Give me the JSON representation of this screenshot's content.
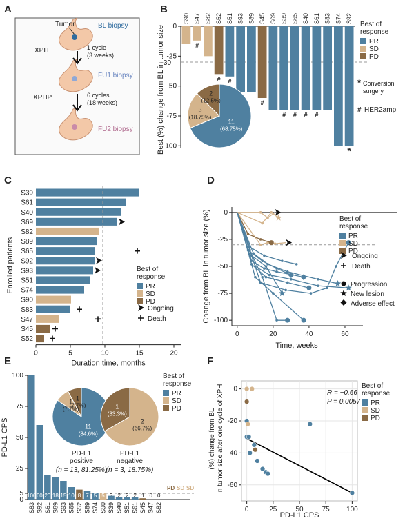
{
  "colors": {
    "PR": "#4f80a0",
    "SD": "#d4b48c",
    "PD": "#8a6a45",
    "stomach": "#f3c8a8",
    "tumor": "#2e6b9e",
    "fu1": "#8fa8d6",
    "fu2": "#c98aa8"
  },
  "panel_letters": [
    "A",
    "B",
    "C",
    "D",
    "E",
    "F"
  ],
  "panel_a": {
    "tumor_label": "Tumor",
    "bl_label": "BL biopsy",
    "fu1_label": "FU1 biopsy",
    "fu2_label": "FU2 biopsy",
    "step1_drug": "XPH",
    "step1_cycles": "1 cycle",
    "step1_weeks": "(3 weeks)",
    "step2_drug": "XPHP",
    "step2_cycles": "6 cycles",
    "step2_weeks": "(18 weeks)"
  },
  "legend": {
    "title1": "Best of",
    "title2": "response",
    "PR": "PR",
    "SD": "SD",
    "PD": "PD",
    "ongoing": "Ongoing",
    "death": "Death",
    "progression": "Progression",
    "new_lesion": "New lesion",
    "adverse": "Adverse effect",
    "conversion1": "Conversion",
    "conversion2": "surgery",
    "her2": "HER2amp"
  },
  "chart_data": [
    {
      "panel": "B",
      "type": "bar",
      "ylabel": "Best (%) change from BL in tumor size",
      "ylim": [
        -105,
        0
      ],
      "yticks": [
        0,
        -25,
        -50,
        -75,
        -100
      ],
      "reference_line": -30,
      "categories": [
        "S90",
        "S47",
        "S82",
        "S52",
        "S51",
        "S93",
        "S89",
        "S45",
        "S69",
        "S39",
        "S65",
        "S40",
        "S61",
        "S83",
        "S74",
        "S92"
      ],
      "values": [
        -15,
        -12,
        -25,
        -40,
        -42,
        -55,
        -55,
        -60,
        -70,
        -70,
        -70,
        -70,
        -70,
        -70,
        -100,
        -100
      ],
      "response": [
        "SD",
        "SD",
        "SD",
        "PD",
        "PR",
        "PR",
        "PR",
        "PD",
        "PR",
        "PR",
        "PR",
        "PR",
        "PR",
        "PR",
        "PR",
        "PR"
      ],
      "her2amp": [
        false,
        true,
        false,
        true,
        true,
        false,
        false,
        true,
        false,
        true,
        true,
        true,
        true,
        false,
        false,
        false
      ],
      "conversion_surgery": [
        false,
        false,
        false,
        false,
        false,
        false,
        false,
        false,
        false,
        false,
        false,
        false,
        false,
        false,
        false,
        true
      ],
      "pie": {
        "values": [
          11,
          3,
          2
        ],
        "labels": [
          "11",
          "3",
          "2"
        ],
        "pct": [
          "(68.75%)",
          "(18.75%)",
          "(12.5%)"
        ],
        "groups": [
          "PR",
          "SD",
          "PD"
        ]
      }
    },
    {
      "panel": "C",
      "type": "bar",
      "orientation": "horizontal",
      "xlabel": "Duration time, months",
      "ylabel": "Enrolled patients",
      "xlim": [
        0,
        21
      ],
      "xticks": [
        0,
        5,
        10,
        15,
        20
      ],
      "reference_line": 9.7,
      "categories": [
        "S39",
        "S61",
        "S40",
        "S69",
        "S82",
        "S89",
        "S65",
        "S92",
        "S93",
        "S51",
        "S74",
        "S90",
        "S83",
        "S47",
        "S45",
        "S52"
      ],
      "values": [
        15,
        13,
        12.3,
        11.8,
        9.2,
        8.8,
        8.5,
        8.5,
        8.3,
        7.8,
        7,
        5.1,
        5,
        3.4,
        2,
        1.2
      ],
      "response": [
        "PR",
        "PR",
        "PR",
        "PR",
        "SD",
        "PR",
        "PR",
        "PR",
        "PR",
        "PR",
        "PR",
        "SD",
        "PR",
        "SD",
        "PD",
        "PD"
      ],
      "ongoing": [
        false,
        false,
        false,
        true,
        false,
        false,
        false,
        true,
        true,
        false,
        false,
        false,
        false,
        false,
        false,
        false
      ],
      "death_at": [
        null,
        null,
        null,
        null,
        null,
        null,
        14.7,
        null,
        null,
        null,
        null,
        null,
        6.3,
        9,
        2.8,
        2.4
      ]
    },
    {
      "panel": "D",
      "type": "line",
      "xlabel": "Time, weeks",
      "ylabel": "Change from BL in tumor size (%)",
      "xlim": [
        -3,
        70
      ],
      "ylim": [
        -105,
        5
      ],
      "xticks": [
        0,
        20,
        40,
        60
      ],
      "yticks": [
        0,
        -25,
        -50,
        -75,
        -100
      ],
      "reference_line": -30,
      "series": [
        {
          "group": "SD",
          "x": [
            0,
            13,
            17,
            21
          ],
          "y": [
            0,
            0,
            -5,
            0
          ],
          "end": "ongoing"
        },
        {
          "group": "SD",
          "x": [
            0,
            14,
            19,
            23
          ],
          "y": [
            0,
            -10,
            0,
            -5
          ],
          "end": "new_lesion"
        },
        {
          "group": "SD",
          "x": [
            0,
            13,
            17,
            21,
            27
          ],
          "y": [
            0,
            -30,
            -28,
            -29,
            -28
          ],
          "end": "ongoing"
        },
        {
          "group": "PD",
          "x": [
            0,
            6,
            13,
            19
          ],
          "y": [
            0,
            -20,
            -25,
            -28
          ],
          "end": "progression"
        },
        {
          "group": "PR",
          "x": [
            0,
            13,
            27,
            41,
            50,
            55,
            62
          ],
          "y": [
            0,
            -65,
            -72,
            -75,
            -70,
            -50,
            -28
          ],
          "end": "progression"
        },
        {
          "group": "PR",
          "x": [
            0,
            7,
            14,
            22,
            28
          ],
          "y": [
            0,
            -35,
            -60,
            -100,
            -100
          ],
          "end": "progression"
        },
        {
          "group": "PR",
          "x": [
            0,
            10,
            20,
            37
          ],
          "y": [
            0,
            -60,
            -75,
            -100
          ],
          "end": "progression"
        },
        {
          "group": "PR",
          "x": [
            0,
            8,
            15,
            22,
            37
          ],
          "y": [
            0,
            -45,
            -52,
            -55,
            -60
          ],
          "end": "adverse"
        },
        {
          "group": "PR",
          "x": [
            0,
            8,
            16,
            25
          ],
          "y": [
            0,
            -40,
            -50,
            -75
          ],
          "end": "new_lesion"
        },
        {
          "group": "PR",
          "x": [
            0,
            9,
            17,
            28,
            45,
            56
          ],
          "y": [
            0,
            -38,
            -48,
            -55,
            -62,
            -66
          ],
          "end": "new_lesion"
        },
        {
          "group": "PR",
          "x": [
            0,
            10,
            18,
            30,
            45,
            62
          ],
          "y": [
            0,
            -50,
            -58,
            -62,
            -68,
            -70
          ],
          "end": "new_lesion"
        },
        {
          "group": "PR",
          "x": [
            0,
            6,
            14,
            22,
            30
          ],
          "y": [
            0,
            -35,
            -45,
            -52,
            -58
          ],
          "end": "adverse"
        },
        {
          "group": "PR",
          "x": [
            0,
            7,
            15,
            25,
            33
          ],
          "y": [
            0,
            -32,
            -40,
            -45,
            -48
          ],
          "end": "none"
        },
        {
          "group": "PR",
          "x": [
            0,
            8,
            16,
            28,
            40
          ],
          "y": [
            0,
            -48,
            -60,
            -65,
            -70
          ],
          "end": "progression"
        }
      ]
    },
    {
      "panel": "E",
      "type": "bar",
      "ylabel": "PD-L1 CPS",
      "ylim": [
        0,
        100
      ],
      "yticks": [
        0,
        5,
        25,
        50,
        75,
        100
      ],
      "reference_line": 5,
      "categories": [
        "S83",
        "S92",
        "S61",
        "S69",
        "S93",
        "S65",
        "S52",
        "S89",
        "S74",
        "S90",
        "S39",
        "S40",
        "S51",
        "S61",
        "S45",
        "S47",
        "S82"
      ],
      "values": [
        100,
        60,
        20,
        18,
        15,
        10,
        8,
        7,
        5,
        5,
        3,
        2,
        2,
        2,
        1,
        0,
        0
      ],
      "labels": [
        "100",
        "60",
        "20",
        "18",
        "15",
        "10",
        "8",
        "7",
        "5",
        "5",
        "3",
        "2",
        "2",
        "2",
        "1",
        "0",
        "0"
      ],
      "response": [
        "PR",
        "PR",
        "PR",
        "PR",
        "PR",
        "PR",
        "PD",
        "PR",
        "PR",
        "SD",
        "PR",
        "PR",
        "PR",
        "PR",
        "PD",
        "SD",
        "SD"
      ],
      "end_labels": [
        "PD",
        "SD",
        "SD"
      ],
      "pie_positive": {
        "values": [
          11,
          1,
          1
        ],
        "labels": [
          "11",
          "1",
          "1"
        ],
        "pct": [
          "(84.6%)",
          "(7.7%)",
          "(7.7%)"
        ],
        "groups": [
          "PR",
          "SD",
          "PD"
        ],
        "caption1": "PD-L1",
        "caption2": "positive",
        "caption3": "(n = 13, 81.25%)"
      },
      "pie_negative": {
        "values": [
          2,
          1
        ],
        "labels": [
          "2",
          "1"
        ],
        "pct": [
          "(66.7%)",
          "(33.3%)"
        ],
        "groups": [
          "SD",
          "PD"
        ],
        "caption1": "PD-L1",
        "caption2": "negative",
        "caption3": "(n = 3, 18.75%)"
      }
    },
    {
      "panel": "F",
      "type": "scatter",
      "xlabel": "PD-L1 CPS",
      "ylabel1": "(%) change from BL",
      "ylabel2": "in tumor size after one cycle of XPH",
      "xlim": [
        -5,
        105
      ],
      "ylim": [
        -70,
        5
      ],
      "xticks": [
        0,
        25,
        50,
        75,
        100
      ],
      "yticks": [
        0,
        -20,
        -40,
        -60
      ],
      "annotation_r": "R = −0.66",
      "annotation_p": "P = 0.0057",
      "fit": {
        "x": [
          0,
          100
        ],
        "y": [
          -31,
          -65
        ]
      },
      "points": [
        {
          "x": 0,
          "y": 0,
          "group": "SD"
        },
        {
          "x": 5,
          "y": 0,
          "group": "SD"
        },
        {
          "x": 0,
          "y": -8,
          "group": "PD"
        },
        {
          "x": 0,
          "y": -20,
          "group": "PR"
        },
        {
          "x": 1,
          "y": -22,
          "group": "SD"
        },
        {
          "x": 0,
          "y": -30,
          "group": "PR"
        },
        {
          "x": 2,
          "y": -30,
          "group": "PR"
        },
        {
          "x": 8,
          "y": -38,
          "group": "PD"
        },
        {
          "x": 3,
          "y": -40,
          "group": "PR"
        },
        {
          "x": 10,
          "y": -45,
          "group": "PR"
        },
        {
          "x": 15,
          "y": -50,
          "group": "PR"
        },
        {
          "x": 18,
          "y": -52,
          "group": "PR"
        },
        {
          "x": 7,
          "y": -35,
          "group": "PR"
        },
        {
          "x": 60,
          "y": -22,
          "group": "PR"
        },
        {
          "x": 100,
          "y": -65,
          "group": "PR"
        },
        {
          "x": 20,
          "y": -53,
          "group": "PR"
        }
      ]
    }
  ]
}
